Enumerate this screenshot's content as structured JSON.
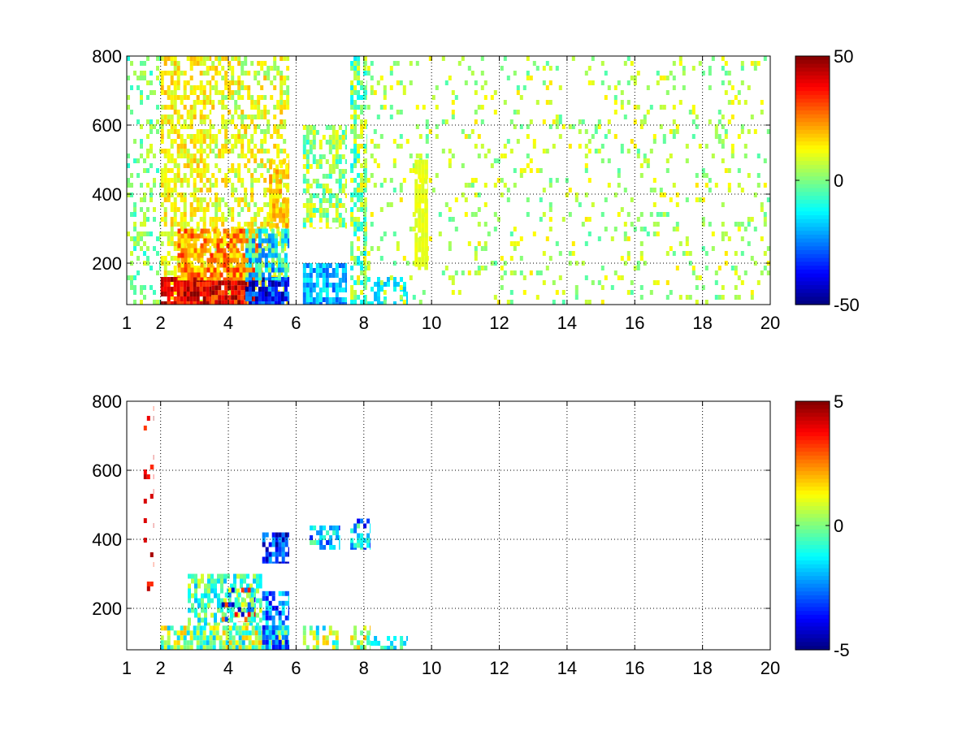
{
  "chart_data": [
    {
      "type": "heatmap",
      "title": "",
      "xlabel": "",
      "ylabel": "",
      "xlim": [
        1,
        20
      ],
      "ylim": [
        80,
        800
      ],
      "xticks": [
        1,
        2,
        4,
        6,
        8,
        10,
        12,
        14,
        16,
        18,
        20
      ],
      "yticks": [
        200,
        400,
        600,
        800
      ],
      "grid": true,
      "colormap": "jet",
      "clim": [
        -50,
        50
      ],
      "colorbar_ticks": [
        -50,
        0,
        50
      ],
      "missing_color": "#ffffff",
      "regions": [
        {
          "x": [
            1.0,
            2.0
          ],
          "y": [
            80,
            800
          ],
          "value_range": [
            -10,
            10
          ],
          "density": 0.3
        },
        {
          "x": [
            2.0,
            3.5
          ],
          "y": [
            80,
            800
          ],
          "value_range": [
            5,
            20
          ],
          "density": 0.55
        },
        {
          "x": [
            3.5,
            5.8
          ],
          "y": [
            80,
            800
          ],
          "value_range": [
            0,
            20
          ],
          "density": 0.45
        },
        {
          "x": [
            2.0,
            3.5
          ],
          "y": [
            80,
            160
          ],
          "value_range": [
            30,
            50
          ],
          "density": 0.95
        },
        {
          "x": [
            3.5,
            4.8
          ],
          "y": [
            80,
            150
          ],
          "value_range": [
            25,
            50
          ],
          "density": 0.95
        },
        {
          "x": [
            4.5,
            5.8
          ],
          "y": [
            80,
            160
          ],
          "value_range": [
            -50,
            -20
          ],
          "density": 0.85
        },
        {
          "x": [
            2.5,
            5.0
          ],
          "y": [
            150,
            300
          ],
          "value_range": [
            10,
            35
          ],
          "density": 0.8
        },
        {
          "x": [
            4.5,
            5.8
          ],
          "y": [
            150,
            300
          ],
          "value_range": [
            -30,
            5
          ],
          "density": 0.7
        },
        {
          "x": [
            5.2,
            5.8
          ],
          "y": [
            300,
            500
          ],
          "value_range": [
            10,
            25
          ],
          "density": 0.7
        },
        {
          "x": [
            6.2,
            7.5
          ],
          "y": [
            80,
            200
          ],
          "value_range": [
            -30,
            -10
          ],
          "density": 0.8
        },
        {
          "x": [
            6.2,
            7.5
          ],
          "y": [
            300,
            600
          ],
          "value_range": [
            -10,
            15
          ],
          "density": 0.6
        },
        {
          "x": [
            7.6,
            8.1
          ],
          "y": [
            80,
            800
          ],
          "value_range": [
            -15,
            15
          ],
          "density": 0.6
        },
        {
          "x": [
            8.1,
            9.3
          ],
          "y": [
            80,
            160
          ],
          "value_range": [
            -20,
            -10
          ],
          "density": 0.5
        },
        {
          "x": [
            8.0,
            20.0
          ],
          "y": [
            80,
            800
          ],
          "value_range": [
            -5,
            15
          ],
          "density": 0.12
        },
        {
          "x": [
            9.5,
            9.9
          ],
          "y": [
            180,
            500
          ],
          "value_range": [
            8,
            12
          ],
          "density": 0.9
        }
      ]
    },
    {
      "type": "heatmap",
      "title": "",
      "xlabel": "",
      "ylabel": "",
      "xlim": [
        1,
        20
      ],
      "ylim": [
        80,
        800
      ],
      "xticks": [
        1,
        2,
        4,
        6,
        8,
        10,
        12,
        14,
        16,
        18,
        20
      ],
      "yticks": [
        200,
        400,
        600,
        800
      ],
      "grid": true,
      "colormap": "jet",
      "clim": [
        -5,
        5
      ],
      "colorbar_ticks": [
        -5,
        0,
        5
      ],
      "missing_color": "#ffffff",
      "regions": [
        {
          "x": [
            1.5,
            1.8
          ],
          "y": [
            250,
            800
          ],
          "value_range": [
            3,
            5
          ],
          "density": 0.15
        },
        {
          "x": [
            2.0,
            5.8
          ],
          "y": [
            80,
            150
          ],
          "value_range": [
            -2,
            2
          ],
          "density": 0.85
        },
        {
          "x": [
            2.8,
            5.0
          ],
          "y": [
            150,
            300
          ],
          "value_range": [
            -2,
            1
          ],
          "density": 0.6
        },
        {
          "x": [
            3.8,
            4.8
          ],
          "y": [
            160,
            260
          ],
          "value_range": [
            -5,
            4
          ],
          "density": 0.6
        },
        {
          "x": [
            5.0,
            5.8
          ],
          "y": [
            80,
            250
          ],
          "value_range": [
            -4,
            -1
          ],
          "density": 0.7
        },
        {
          "x": [
            5.0,
            5.8
          ],
          "y": [
            330,
            420
          ],
          "value_range": [
            -5,
            -2
          ],
          "density": 0.7
        },
        {
          "x": [
            6.2,
            7.3
          ],
          "y": [
            80,
            150
          ],
          "value_range": [
            -2,
            2
          ],
          "density": 0.6
        },
        {
          "x": [
            6.4,
            7.3
          ],
          "y": [
            370,
            440
          ],
          "value_range": [
            -4,
            0
          ],
          "density": 0.6
        },
        {
          "x": [
            7.6,
            8.2
          ],
          "y": [
            80,
            150
          ],
          "value_range": [
            -1,
            2
          ],
          "density": 0.5
        },
        {
          "x": [
            7.6,
            8.2
          ],
          "y": [
            370,
            460
          ],
          "value_range": [
            -4,
            0
          ],
          "density": 0.65
        },
        {
          "x": [
            8.2,
            9.3
          ],
          "y": [
            80,
            120
          ],
          "value_range": [
            -2,
            0
          ],
          "density": 0.5
        }
      ]
    }
  ]
}
